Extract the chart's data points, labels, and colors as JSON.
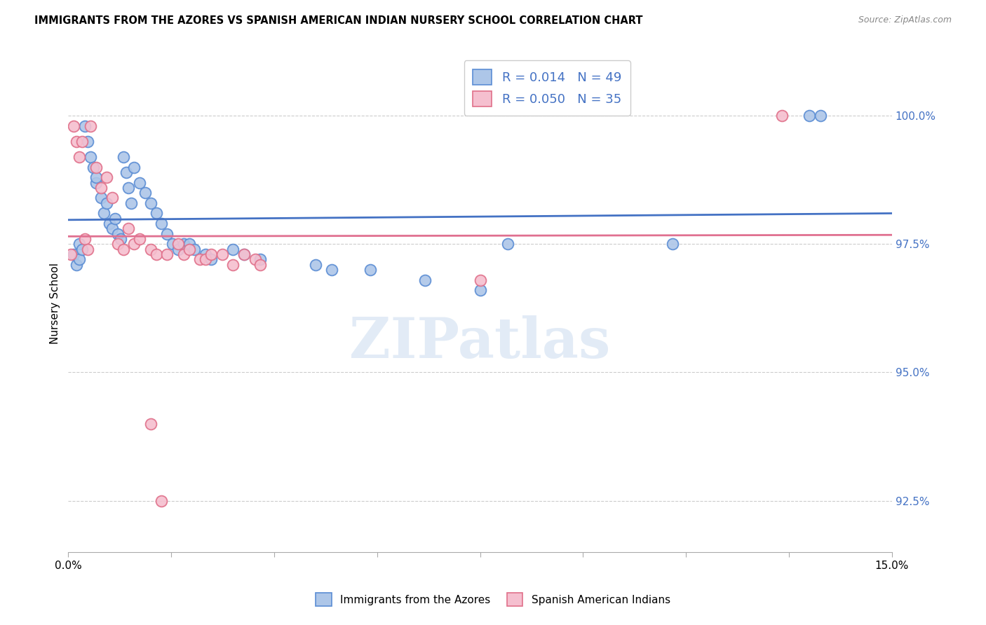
{
  "title": "IMMIGRANTS FROM THE AZORES VS SPANISH AMERICAN INDIAN NURSERY SCHOOL CORRELATION CHART",
  "source": "Source: ZipAtlas.com",
  "ylabel": "Nursery School",
  "ylabel_right_vals": [
    100.0,
    97.5,
    95.0,
    92.5
  ],
  "xlim": [
    0.0,
    15.0
  ],
  "ylim": [
    91.5,
    101.2
  ],
  "legend_blue_r": "0.014",
  "legend_blue_n": "49",
  "legend_pink_r": "0.050",
  "legend_pink_n": "35",
  "legend_blue_label": "Immigrants from the Azores",
  "legend_pink_label": "Spanish American Indians",
  "blue_color": "#adc6e8",
  "blue_edge_color": "#5b8dd4",
  "pink_color": "#f5bfcf",
  "pink_edge_color": "#e0708a",
  "blue_line_color": "#4472c4",
  "pink_line_color": "#e07090",
  "blue_points_x": [
    0.1,
    0.15,
    0.2,
    0.2,
    0.25,
    0.3,
    0.35,
    0.4,
    0.45,
    0.5,
    0.5,
    0.6,
    0.65,
    0.7,
    0.75,
    0.8,
    0.85,
    0.9,
    0.95,
    1.0,
    1.05,
    1.1,
    1.15,
    1.2,
    1.3,
    1.4,
    1.5,
    1.6,
    1.7,
    1.8,
    1.9,
    2.0,
    2.1,
    2.2,
    2.3,
    2.5,
    2.6,
    3.0,
    3.2,
    3.5,
    4.5,
    5.5,
    6.5,
    8.0,
    11.0,
    13.5,
    13.7,
    7.5,
    4.8
  ],
  "blue_points_y": [
    97.3,
    97.1,
    97.5,
    97.2,
    97.4,
    99.8,
    99.5,
    99.2,
    99.0,
    98.7,
    98.8,
    98.4,
    98.1,
    98.3,
    97.9,
    97.8,
    98.0,
    97.7,
    97.6,
    99.2,
    98.9,
    98.6,
    98.3,
    99.0,
    98.7,
    98.5,
    98.3,
    98.1,
    97.9,
    97.7,
    97.5,
    97.4,
    97.5,
    97.5,
    97.4,
    97.3,
    97.2,
    97.4,
    97.3,
    97.2,
    97.1,
    97.0,
    96.8,
    97.5,
    97.5,
    100.0,
    100.0,
    96.6,
    97.0
  ],
  "pink_points_x": [
    0.05,
    0.1,
    0.15,
    0.2,
    0.25,
    0.3,
    0.35,
    0.4,
    0.5,
    0.6,
    0.7,
    0.8,
    0.9,
    1.0,
    1.1,
    1.2,
    1.3,
    1.5,
    1.6,
    1.8,
    2.0,
    2.1,
    2.2,
    2.4,
    2.5,
    2.6,
    2.8,
    3.0,
    3.2,
    3.4,
    3.5,
    1.5,
    1.7,
    13.0,
    7.5
  ],
  "pink_points_y": [
    97.3,
    99.8,
    99.5,
    99.2,
    99.5,
    97.6,
    97.4,
    99.8,
    99.0,
    98.6,
    98.8,
    98.4,
    97.5,
    97.4,
    97.8,
    97.5,
    97.6,
    97.4,
    97.3,
    97.3,
    97.5,
    97.3,
    97.4,
    97.2,
    97.2,
    97.3,
    97.3,
    97.1,
    97.3,
    97.2,
    97.1,
    94.0,
    92.5,
    100.0,
    96.8
  ],
  "watermark_text": "ZIPatlas",
  "grid_color": "#cccccc"
}
